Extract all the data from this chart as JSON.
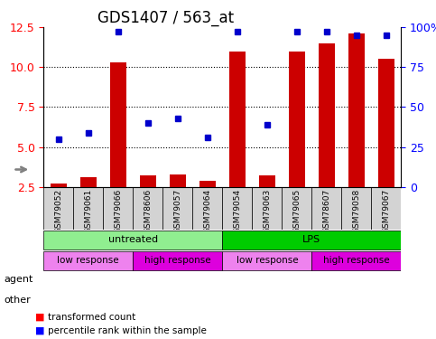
{
  "title": "GDS1407 / 563_at",
  "samples": [
    "GSM79052",
    "GSM79061",
    "GSM79066",
    "GSM78606",
    "GSM79057",
    "GSM79064",
    "GSM79054",
    "GSM79063",
    "GSM79065",
    "GSM78607",
    "GSM79058",
    "GSM79067"
  ],
  "bar_values": [
    2.7,
    3.1,
    10.3,
    3.2,
    3.3,
    2.9,
    11.0,
    3.2,
    11.0,
    11.5,
    12.1,
    10.5
  ],
  "dot_values": [
    5.5,
    5.9,
    12.2,
    6.5,
    6.8,
    5.6,
    12.2,
    6.4,
    12.2,
    12.2,
    12.0,
    12.0
  ],
  "ylim_left": [
    2.5,
    12.5
  ],
  "ylim_right": [
    0,
    100
  ],
  "yticks_left": [
    2.5,
    5.0,
    7.5,
    10.0,
    12.5
  ],
  "yticks_right": [
    0,
    25,
    50,
    75,
    100
  ],
  "ytick_labels_right": [
    "0",
    "25",
    "50",
    "75",
    "100%"
  ],
  "bar_color": "#cc0000",
  "dot_color": "#0000cc",
  "bg_color": "#ffffff",
  "grid_color": "#000000",
  "agent_groups": [
    {
      "label": "untreated",
      "start": 0,
      "end": 6,
      "color": "#90ee90"
    },
    {
      "label": "LPS",
      "start": 6,
      "end": 12,
      "color": "#00cc00"
    }
  ],
  "other_groups": [
    {
      "label": "low response",
      "start": 0,
      "end": 3,
      "color": "#ee82ee"
    },
    {
      "label": "high response",
      "start": 3,
      "end": 6,
      "color": "#dd00dd"
    },
    {
      "label": "low response",
      "start": 6,
      "end": 9,
      "color": "#ee82ee"
    },
    {
      "label": "high response",
      "start": 9,
      "end": 12,
      "color": "#dd00dd"
    }
  ],
  "legend_items": [
    {
      "label": "transformed count",
      "color": "#cc0000"
    },
    {
      "label": "percentile rank within the sample",
      "color": "#0000cc"
    }
  ],
  "xlabel": "",
  "ylabel_left": "",
  "ylabel_right": ""
}
